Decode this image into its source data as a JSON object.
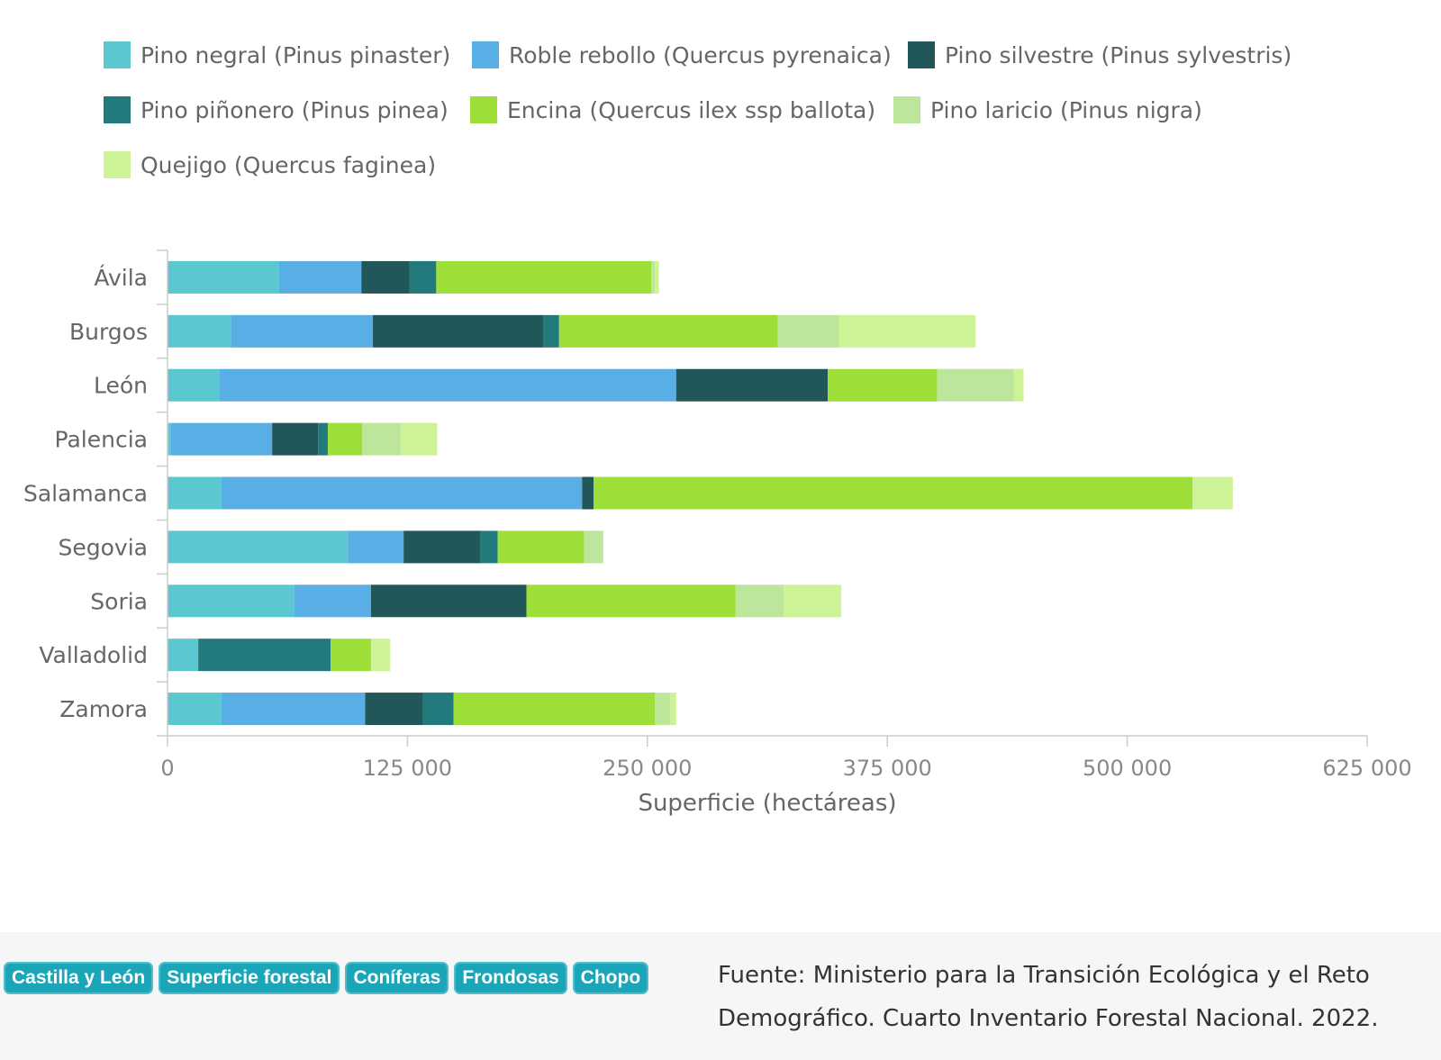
{
  "chart_data": {
    "type": "bar",
    "orientation": "horizontal",
    "stacked": true,
    "categories": [
      "Ávila",
      "Burgos",
      "León",
      "Palencia",
      "Salamanca",
      "Segovia",
      "Soria",
      "Valladolid",
      "Zamora"
    ],
    "series": [
      {
        "name": "Pino negral (Pinus pinaster)",
        "color": "#5bc8d1",
        "values": [
          58000,
          33000,
          27000,
          1500,
          28000,
          94000,
          66000,
          16000,
          28000
        ]
      },
      {
        "name": "Roble rebollo (Quercus pyrenaica)",
        "color": "#5aaee6",
        "values": [
          43000,
          74000,
          238000,
          53000,
          188000,
          29000,
          40000,
          0,
          75000
        ]
      },
      {
        "name": "Pino silvestre (Pinus sylvestris)",
        "color": "#22575a",
        "values": [
          25000,
          89000,
          79000,
          24000,
          6000,
          40000,
          81000,
          0,
          30000
        ]
      },
      {
        "name": "Pino piñonero (Pinus pinea)",
        "color": "#237a7c",
        "values": [
          14000,
          8000,
          0,
          5000,
          0,
          9000,
          0,
          69000,
          16000
        ]
      },
      {
        "name": "Encina (Quercus ilex ssp ballota)",
        "color": "#9ddf38",
        "values": [
          112000,
          114000,
          57000,
          18000,
          312000,
          45000,
          109000,
          21000,
          105000
        ]
      },
      {
        "name": "Pino laricio (Pinus nigra)",
        "color": "#bde69c",
        "values": [
          2000,
          32000,
          40000,
          20000,
          0,
          10000,
          25000,
          0,
          8000
        ]
      },
      {
        "name": "Quejigo (Quercus faginea)",
        "color": "#cdf396",
        "values": [
          2000,
          71000,
          5000,
          19000,
          21000,
          0,
          30000,
          10000,
          3000
        ]
      }
    ],
    "xlabel": "Superficie (hectáreas)",
    "ylabel": "",
    "xlim": [
      0,
      625000
    ],
    "ticks": [
      {
        "value": 0,
        "label": "0"
      },
      {
        "value": 125000,
        "label": "125 000"
      },
      {
        "value": 250000,
        "label": "250 000"
      },
      {
        "value": 375000,
        "label": "375 000"
      },
      {
        "value": 500000,
        "label": "500 000"
      },
      {
        "value": 625000,
        "label": "625 000"
      }
    ],
    "grid": false,
    "legend_position": "top-left"
  },
  "footer": {
    "tags": [
      "Castilla y León",
      "Superficie forestal",
      "Coníferas",
      "Frondosas",
      "Chopo"
    ],
    "source": "Fuente: Ministerio para la Transición Ecológica y el Reto Demográfico. Cuarto Inventario Forestal Nacional. 2022."
  }
}
